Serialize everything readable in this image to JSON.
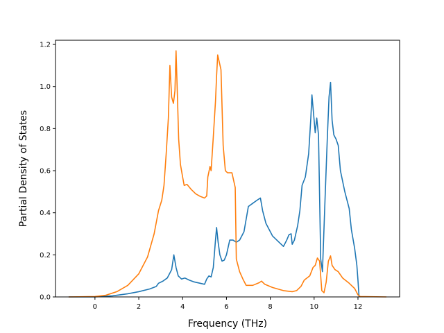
{
  "chart_data": {
    "type": "line",
    "title": "",
    "xlabel": "Frequency (THz)",
    "ylabel": "Partial Density of States",
    "xlim": [
      -1.8,
      13.9
    ],
    "ylim": [
      0,
      1.22
    ],
    "xticks": [
      0,
      2,
      4,
      6,
      8,
      10,
      12
    ],
    "yticks": [
      0.0,
      0.2,
      0.4,
      0.6,
      0.8,
      1.0,
      1.2
    ],
    "xtick_labels": [
      "0",
      "2",
      "4",
      "6",
      "8",
      "10",
      "12"
    ],
    "ytick_labels": [
      "0.0",
      "0.2",
      "0.4",
      "0.6",
      "0.8",
      "1.0",
      "1.2"
    ],
    "grid": false,
    "legend": "none",
    "series": [
      {
        "color": "#1f77b4",
        "points": [
          [
            -1.2,
            0
          ],
          [
            0.0,
            0
          ],
          [
            0.8,
            0.005
          ],
          [
            1.5,
            0.015
          ],
          [
            2.0,
            0.025
          ],
          [
            2.5,
            0.038
          ],
          [
            2.8,
            0.05
          ],
          [
            2.9,
            0.065
          ],
          [
            3.1,
            0.075
          ],
          [
            3.3,
            0.09
          ],
          [
            3.5,
            0.13
          ],
          [
            3.6,
            0.2
          ],
          [
            3.7,
            0.14
          ],
          [
            3.8,
            0.1
          ],
          [
            3.95,
            0.085
          ],
          [
            4.1,
            0.09
          ],
          [
            4.3,
            0.08
          ],
          [
            4.5,
            0.072
          ],
          [
            4.8,
            0.065
          ],
          [
            5.0,
            0.06
          ],
          [
            5.1,
            0.085
          ],
          [
            5.2,
            0.1
          ],
          [
            5.3,
            0.095
          ],
          [
            5.4,
            0.14
          ],
          [
            5.5,
            0.27
          ],
          [
            5.55,
            0.33
          ],
          [
            5.62,
            0.26
          ],
          [
            5.7,
            0.2
          ],
          [
            5.8,
            0.17
          ],
          [
            5.9,
            0.175
          ],
          [
            6.0,
            0.2
          ],
          [
            6.15,
            0.27
          ],
          [
            6.3,
            0.27
          ],
          [
            6.45,
            0.26
          ],
          [
            6.6,
            0.27
          ],
          [
            6.8,
            0.31
          ],
          [
            7.0,
            0.43
          ],
          [
            7.2,
            0.445
          ],
          [
            7.4,
            0.46
          ],
          [
            7.55,
            0.47
          ],
          [
            7.65,
            0.41
          ],
          [
            7.8,
            0.35
          ],
          [
            8.1,
            0.29
          ],
          [
            8.4,
            0.26
          ],
          [
            8.6,
            0.24
          ],
          [
            8.75,
            0.27
          ],
          [
            8.85,
            0.295
          ],
          [
            8.95,
            0.3
          ],
          [
            9.0,
            0.25
          ],
          [
            9.1,
            0.27
          ],
          [
            9.25,
            0.34
          ],
          [
            9.35,
            0.41
          ],
          [
            9.45,
            0.53
          ],
          [
            9.6,
            0.57
          ],
          [
            9.75,
            0.68
          ],
          [
            9.85,
            0.85
          ],
          [
            9.9,
            0.96
          ],
          [
            9.95,
            0.9
          ],
          [
            10.05,
            0.78
          ],
          [
            10.12,
            0.85
          ],
          [
            10.2,
            0.77
          ],
          [
            10.3,
            0.18
          ],
          [
            10.38,
            0.12
          ],
          [
            10.5,
            0.47
          ],
          [
            10.6,
            0.75
          ],
          [
            10.68,
            0.95
          ],
          [
            10.75,
            1.02
          ],
          [
            10.82,
            0.84
          ],
          [
            10.9,
            0.77
          ],
          [
            11.0,
            0.75
          ],
          [
            11.1,
            0.72
          ],
          [
            11.2,
            0.6
          ],
          [
            11.4,
            0.5
          ],
          [
            11.6,
            0.42
          ],
          [
            11.7,
            0.32
          ],
          [
            11.85,
            0.23
          ],
          [
            11.95,
            0.15
          ],
          [
            12.0,
            0.08
          ],
          [
            12.05,
            0.0
          ]
        ]
      },
      {
        "color": "#ff7f0e",
        "points": [
          [
            -1.2,
            0
          ],
          [
            0.0,
            0.002
          ],
          [
            0.5,
            0.008
          ],
          [
            1.0,
            0.025
          ],
          [
            1.5,
            0.055
          ],
          [
            2.0,
            0.11
          ],
          [
            2.4,
            0.19
          ],
          [
            2.7,
            0.3
          ],
          [
            2.9,
            0.41
          ],
          [
            3.05,
            0.46
          ],
          [
            3.15,
            0.53
          ],
          [
            3.25,
            0.68
          ],
          [
            3.35,
            0.85
          ],
          [
            3.42,
            1.1
          ],
          [
            3.5,
            0.95
          ],
          [
            3.58,
            0.92
          ],
          [
            3.65,
            0.98
          ],
          [
            3.7,
            1.17
          ],
          [
            3.75,
            1.0
          ],
          [
            3.82,
            0.75
          ],
          [
            3.9,
            0.63
          ],
          [
            4.0,
            0.57
          ],
          [
            4.07,
            0.53
          ],
          [
            4.2,
            0.535
          ],
          [
            4.4,
            0.51
          ],
          [
            4.6,
            0.49
          ],
          [
            4.8,
            0.478
          ],
          [
            5.0,
            0.47
          ],
          [
            5.1,
            0.48
          ],
          [
            5.15,
            0.57
          ],
          [
            5.25,
            0.62
          ],
          [
            5.3,
            0.6
          ],
          [
            5.4,
            0.76
          ],
          [
            5.5,
            0.93
          ],
          [
            5.55,
            1.05
          ],
          [
            5.6,
            1.15
          ],
          [
            5.75,
            1.08
          ],
          [
            5.85,
            0.72
          ],
          [
            5.95,
            0.6
          ],
          [
            6.05,
            0.59
          ],
          [
            6.25,
            0.59
          ],
          [
            6.4,
            0.52
          ],
          [
            6.45,
            0.18
          ],
          [
            6.6,
            0.12
          ],
          [
            6.75,
            0.085
          ],
          [
            6.9,
            0.055
          ],
          [
            7.2,
            0.055
          ],
          [
            7.5,
            0.068
          ],
          [
            7.6,
            0.075
          ],
          [
            7.75,
            0.06
          ],
          [
            8.1,
            0.045
          ],
          [
            8.6,
            0.03
          ],
          [
            9.0,
            0.025
          ],
          [
            9.2,
            0.03
          ],
          [
            9.4,
            0.05
          ],
          [
            9.55,
            0.08
          ],
          [
            9.8,
            0.1
          ],
          [
            9.95,
            0.14
          ],
          [
            10.05,
            0.15
          ],
          [
            10.15,
            0.185
          ],
          [
            10.25,
            0.17
          ],
          [
            10.35,
            0.03
          ],
          [
            10.45,
            0.02
          ],
          [
            10.55,
            0.07
          ],
          [
            10.65,
            0.17
          ],
          [
            10.75,
            0.195
          ],
          [
            10.82,
            0.15
          ],
          [
            10.95,
            0.13
          ],
          [
            11.1,
            0.12
          ],
          [
            11.3,
            0.09
          ],
          [
            11.6,
            0.065
          ],
          [
            11.85,
            0.04
          ],
          [
            12.0,
            0.01
          ],
          [
            12.1,
            0.002
          ],
          [
            13.3,
            0
          ]
        ]
      }
    ]
  }
}
